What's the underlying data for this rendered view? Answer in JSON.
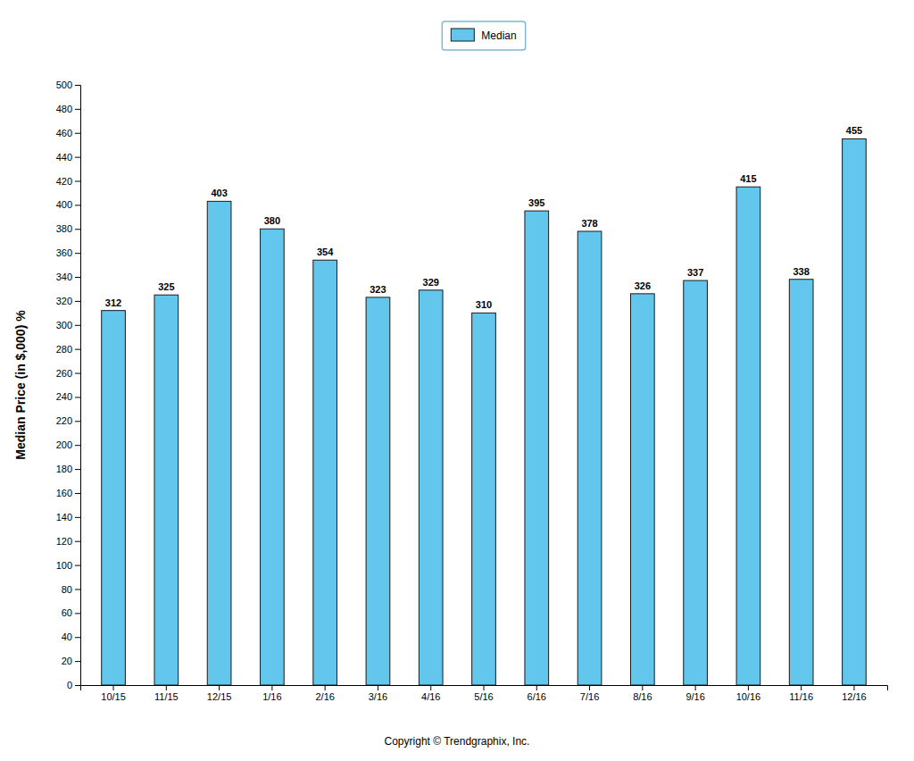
{
  "chart_data": {
    "type": "bar",
    "categories": [
      "10/15",
      "11/15",
      "12/15",
      "1/16",
      "2/16",
      "3/16",
      "4/16",
      "5/16",
      "6/16",
      "7/16",
      "8/16",
      "9/16",
      "10/16",
      "11/16",
      "12/16"
    ],
    "series": [
      {
        "name": "Median",
        "color": "#62C6ED",
        "values": [
          312,
          325,
          403,
          380,
          354,
          323,
          329,
          310,
          395,
          378,
          326,
          337,
          415,
          338,
          455
        ]
      }
    ],
    "y_label": "Median Price (in $,000) %",
    "ylim": [
      0,
      500
    ],
    "yticks": [
      0,
      20,
      40,
      60,
      80,
      100,
      120,
      140,
      160,
      180,
      200,
      220,
      240,
      260,
      280,
      300,
      320,
      340,
      360,
      380,
      400,
      420,
      440,
      460,
      480,
      500
    ],
    "grid": false,
    "legend": "top",
    "data_labels": true,
    "annotations": [
      "Copyright © Trendgraphix, Inc."
    ]
  }
}
